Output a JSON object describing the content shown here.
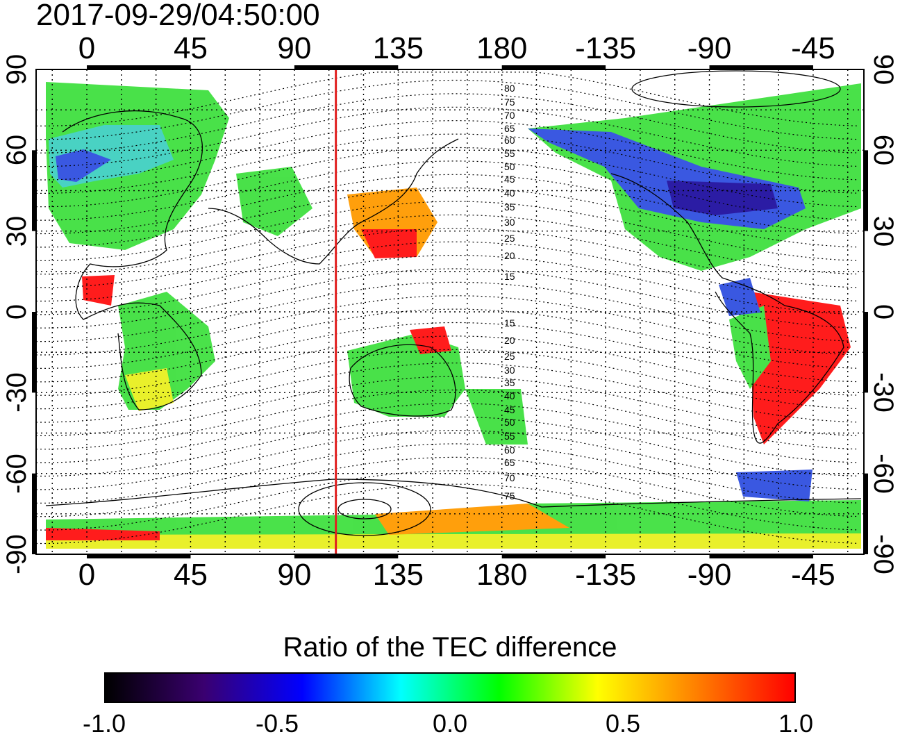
{
  "timestamp": "2017-09-29/04:50:00",
  "axes": {
    "x_ticks": [
      "0",
      "45",
      "90",
      "135",
      "180",
      "-135",
      "-90",
      "-45"
    ],
    "x_tick_values": [
      0,
      45,
      90,
      135,
      180,
      225,
      270,
      315
    ],
    "y_ticks": [
      "90",
      "60",
      "30",
      "0",
      "-30",
      "-60",
      "-90"
    ],
    "y_tick_values": [
      90,
      60,
      30,
      0,
      -30,
      -60,
      -90
    ],
    "xlim": [
      -22,
      337
    ],
    "ylim": [
      -90,
      90
    ],
    "grid": true
  },
  "marker_line": {
    "longitude": 108,
    "color": "#e02020"
  },
  "magnetic_latitude_labels": {
    "north": [
      "80",
      "75",
      "70",
      "65",
      "60",
      "55",
      "50",
      "45",
      "40",
      "35",
      "30",
      "25",
      "20",
      "15"
    ],
    "south": [
      "15",
      "20",
      "25",
      "30",
      "35",
      "40",
      "45",
      "50",
      "55",
      "60",
      "65",
      "70",
      "75"
    ]
  },
  "colorbar": {
    "title": "Ratio of the TEC difference",
    "ticks": [
      "-1.0",
      "-0.5",
      "0.0",
      "0.5",
      "1.0"
    ],
    "range": [
      -1.0,
      1.0
    ],
    "colors": [
      "#000000",
      "#3a0070",
      "#0000ff",
      "#00ffff",
      "#00ff00",
      "#ffff00",
      "#ff8000",
      "#ff0000"
    ]
  },
  "colors": {
    "red_ratio": "#ff1010",
    "orange_ratio": "#ff9a00",
    "yellow_ratio": "#e8f020",
    "green_ratio": "#40e040",
    "cyan_ratio": "#40d0c0",
    "blue_ratio": "#3050e0",
    "darkblue_ratio": "#2010a0"
  }
}
